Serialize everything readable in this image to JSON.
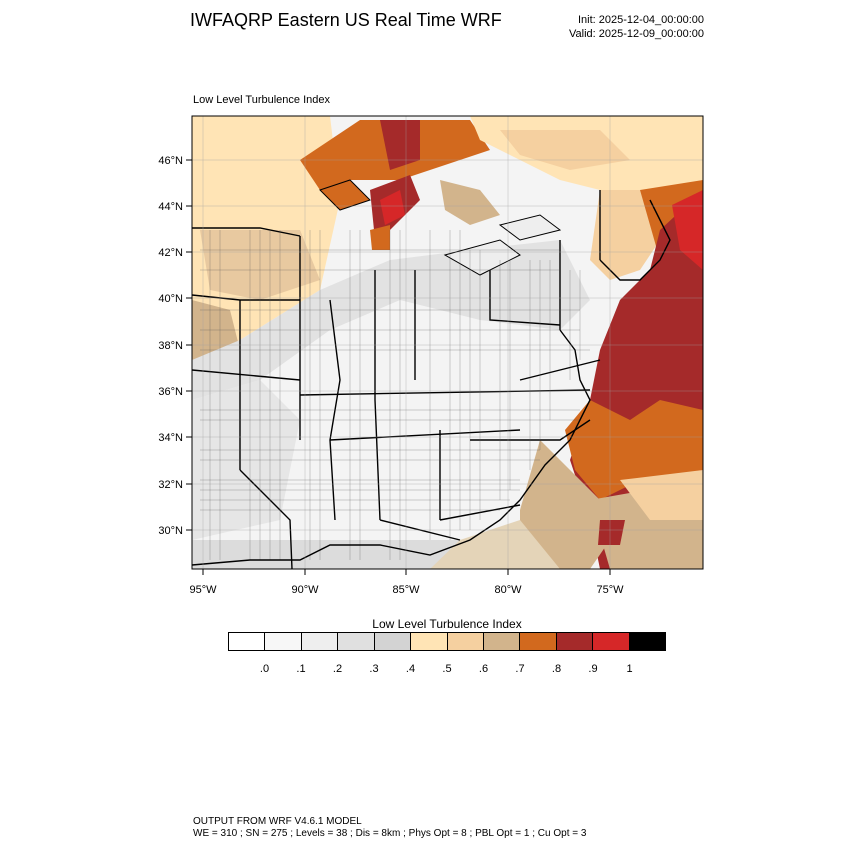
{
  "header": {
    "title": "IWFAQRP Eastern US Real Time WRF",
    "init": "Init: 2025-12-04_00:00:00",
    "valid": "Valid: 2025-12-09_00:00:00"
  },
  "plot": {
    "title": "Low Level Turbulence Index",
    "lat_labels": [
      "46°N",
      "44°N",
      "42°N",
      "40°N",
      "38°N",
      "36°N",
      "34°N",
      "32°N",
      "30°N"
    ],
    "lon_labels": [
      "95°W",
      "90°W",
      "85°W",
      "80°W",
      "75°W"
    ]
  },
  "colorbar": {
    "title": "Low Level Turbulence Index",
    "labels": [
      ".0",
      ".1",
      ".2",
      ".3",
      ".4",
      ".5",
      ".6",
      ".7",
      ".8",
      ".9",
      "1"
    ],
    "colors": [
      "#ffffff",
      "#f7f7f7",
      "#eeeeee",
      "#e0e0e0",
      "#d3d3d3",
      "#ffe4b5",
      "#f5d0a0",
      "#d2b48c",
      "#d2691e",
      "#a52a2a",
      "#d62728",
      "#000000"
    ]
  },
  "footer": {
    "line1": "OUTPUT FROM WRF V4.6.1 MODEL",
    "line2": "WE = 310 ; SN = 275 ; Levels = 38 ; Dis = 8km ; Phys Opt = 8 ; PBL Opt = 1 ; Cu Opt = 3"
  }
}
